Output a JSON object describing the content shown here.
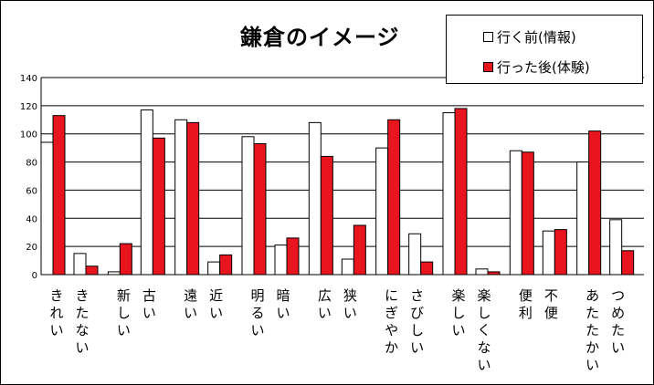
{
  "chart_data": {
    "type": "bar",
    "title": "鎌倉のイメージ",
    "xlabel": "",
    "ylabel": "",
    "ylim": [
      0,
      140
    ],
    "yticks": [
      0,
      20,
      40,
      60,
      80,
      100,
      120,
      140
    ],
    "grid": true,
    "legend_position": "top-right",
    "categories": [
      "きれい",
      "きたない",
      "新しい",
      "古い",
      "遠い",
      "近い",
      "明るい",
      "暗い",
      "広い",
      "狭い",
      "にぎやか",
      "さびしい",
      "楽しい",
      "楽しくない",
      "便利",
      "不便",
      "あたたかい",
      "つめたい"
    ],
    "series": [
      {
        "name": "行く前(情報)",
        "color": "#ffffff",
        "values": [
          94,
          15,
          2,
          117,
          110,
          9,
          98,
          21,
          108,
          11,
          90,
          29,
          115,
          4,
          88,
          31,
          80,
          39
        ]
      },
      {
        "name": "行った後(体験)",
        "color": "#e8141e",
        "values": [
          113,
          6,
          22,
          97,
          108,
          14,
          93,
          26,
          84,
          35,
          110,
          9,
          118,
          2,
          87,
          32,
          102,
          17
        ]
      }
    ]
  }
}
